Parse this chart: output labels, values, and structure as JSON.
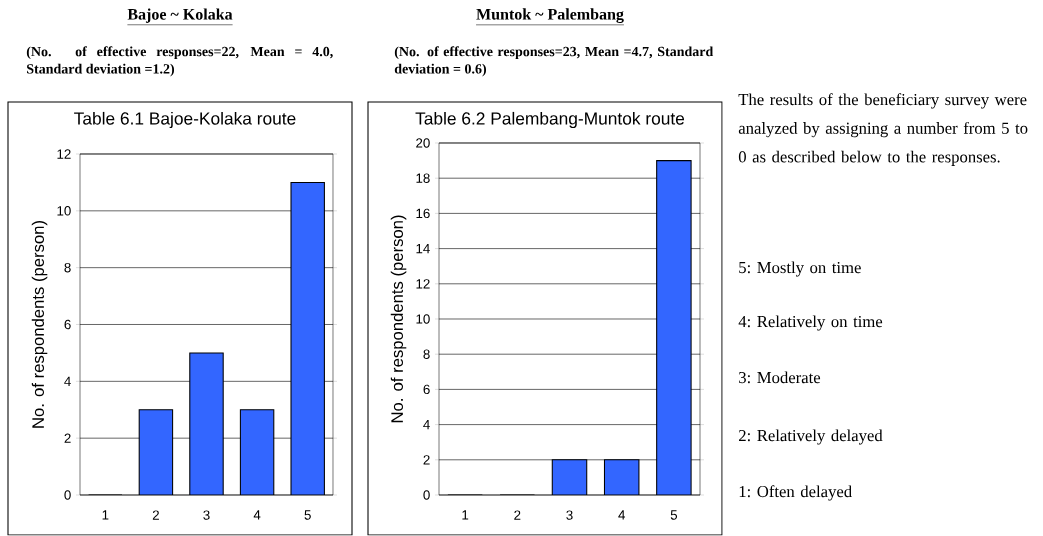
{
  "chart_data": [
    {
      "type": "bar",
      "title": "Bajoe ~ Kolaka",
      "subtitle": "(No. of effective responses=22, Mean = 4.0, Standard deviation =1.2)",
      "annotations": [
        "Table 6.1 Bajoe-Kolaka route"
      ],
      "ylabel": "No. of respondents (person)",
      "categories": [
        "1",
        "2",
        "3",
        "4",
        "5"
      ],
      "values": [
        0,
        3,
        5,
        3,
        11
      ],
      "color": "#3366ff",
      "ylim": [
        0,
        12
      ],
      "yticks": [
        0,
        2,
        4,
        6,
        8,
        10,
        12
      ],
      "grid": "y"
    },
    {
      "type": "bar",
      "title": "Muntok ~ Palembang",
      "subtitle": "(No. of effective responses=23, Mean =4.7, Standard deviation = 0.6)",
      "annotations": [
        "Table 6.2 Palembang-Muntok route"
      ],
      "ylabel": "No. of respondents (person)",
      "categories": [
        "1",
        "2",
        "3",
        "4",
        "5"
      ],
      "values": [
        0,
        0,
        2,
        2,
        19
      ],
      "color": "#3366ff",
      "ylim": [
        0,
        20
      ],
      "yticks": [
        0,
        2,
        4,
        6,
        8,
        10,
        12,
        14,
        16,
        18,
        20
      ],
      "grid": "y"
    },
    {
      "type": "other",
      "annotations": [
        "The results of the beneficiary survey were analyzed by assigning a number from 5 to 0 as described below to the responses.",
        "5: Mostly on time",
        "4: Relatively on time",
        "3: Moderate",
        "2: Relatively delayed",
        "1: Often delayed"
      ]
    }
  ]
}
